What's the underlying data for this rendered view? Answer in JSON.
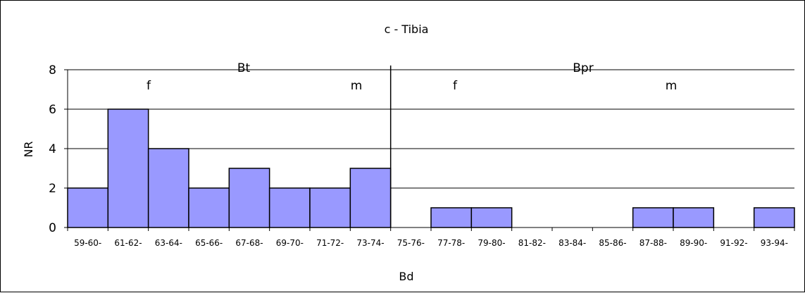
{
  "chart_data": {
    "type": "bar",
    "title": "c - Tibia",
    "xlabel": "Bd",
    "ylabel": "NR",
    "ylim": [
      0,
      8
    ],
    "yticks": [
      0,
      2,
      4,
      6,
      8
    ],
    "grid": true,
    "legend": "none",
    "bar_color": "#9999ff",
    "categories": [
      "59-60-",
      "61-62-",
      "63-64-",
      "65-66-",
      "67-68-",
      "69-70-",
      "71-72-",
      "73-74-",
      "75-76-",
      "77-78-",
      "79-80-",
      "81-82-",
      "83-84-",
      "85-86-",
      "87-88-",
      "89-90-",
      "91-92-",
      "93-94-"
    ],
    "values": [
      2,
      6,
      4,
      2,
      3,
      2,
      2,
      3,
      0,
      1,
      1,
      0,
      0,
      0,
      1,
      1,
      0,
      1
    ],
    "separator_after_category": "73-74-",
    "annotations": {
      "groups": [
        "Bt",
        "Bpr"
      ],
      "sex_labels": [
        "f",
        "m",
        "f",
        "m"
      ]
    }
  }
}
